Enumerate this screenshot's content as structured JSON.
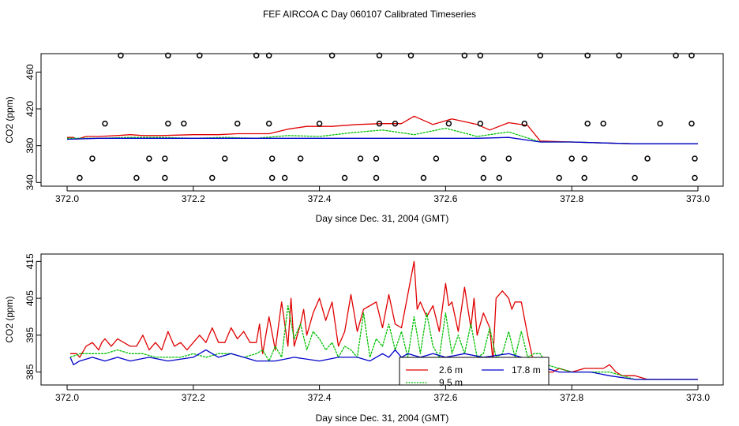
{
  "page_title": "FEF AIRCOA C  Day 060107  Calibrated Timeseries",
  "colors": {
    "red": "#e00000",
    "green": "#00c000",
    "blue": "#0000cc",
    "black": "#000000"
  },
  "chart_data": [
    {
      "type": "scatter+line",
      "title": "FEF AIRCOA C  Day 060107  Calibrated Timeseries",
      "xlabel": "Day since Dec. 31, 2004 (GMT)",
      "ylabel": "CO2 (ppm)",
      "xlim": [
        372.0,
        373.0
      ],
      "ylim": [
        336,
        480
      ],
      "xticks": [
        372.0,
        372.2,
        372.4,
        372.6,
        372.8,
        373.0
      ],
      "xtick_labels": [
        "372.0",
        "372.2",
        "372.4",
        "372.6",
        "372.8",
        "373.0"
      ],
      "yticks": [
        340,
        380,
        420,
        460
      ],
      "ytick_labels": [
        "340",
        "380",
        "420",
        "460"
      ],
      "calibration_points": [
        {
          "x": 372.02,
          "y": 345
        },
        {
          "x": 372.04,
          "y": 366
        },
        {
          "x": 372.06,
          "y": 404
        },
        {
          "x": 372.085,
          "y": 478
        },
        {
          "x": 372.11,
          "y": 345
        },
        {
          "x": 372.13,
          "y": 366
        },
        {
          "x": 372.155,
          "y": 345
        },
        {
          "x": 372.155,
          "y": 366
        },
        {
          "x": 372.16,
          "y": 404
        },
        {
          "x": 372.16,
          "y": 478
        },
        {
          "x": 372.185,
          "y": 404
        },
        {
          "x": 372.21,
          "y": 478
        },
        {
          "x": 372.23,
          "y": 345
        },
        {
          "x": 372.25,
          "y": 366
        },
        {
          "x": 372.27,
          "y": 404
        },
        {
          "x": 372.3,
          "y": 478
        },
        {
          "x": 372.32,
          "y": 478
        },
        {
          "x": 372.32,
          "y": 404
        },
        {
          "x": 372.325,
          "y": 366
        },
        {
          "x": 372.325,
          "y": 345
        },
        {
          "x": 372.345,
          "y": 345
        },
        {
          "x": 372.37,
          "y": 366
        },
        {
          "x": 372.4,
          "y": 404
        },
        {
          "x": 372.42,
          "y": 478
        },
        {
          "x": 372.44,
          "y": 345
        },
        {
          "x": 372.465,
          "y": 366
        },
        {
          "x": 372.49,
          "y": 366
        },
        {
          "x": 372.49,
          "y": 345
        },
        {
          "x": 372.495,
          "y": 404
        },
        {
          "x": 372.495,
          "y": 478
        },
        {
          "x": 372.52,
          "y": 404
        },
        {
          "x": 372.545,
          "y": 478
        },
        {
          "x": 372.565,
          "y": 345
        },
        {
          "x": 372.585,
          "y": 366
        },
        {
          "x": 372.605,
          "y": 404
        },
        {
          "x": 372.63,
          "y": 478
        },
        {
          "x": 372.655,
          "y": 404
        },
        {
          "x": 372.655,
          "y": 478
        },
        {
          "x": 372.66,
          "y": 366
        },
        {
          "x": 372.66,
          "y": 345
        },
        {
          "x": 372.685,
          "y": 345
        },
        {
          "x": 372.7,
          "y": 366
        },
        {
          "x": 372.725,
          "y": 404
        },
        {
          "x": 372.75,
          "y": 478
        },
        {
          "x": 372.78,
          "y": 345
        },
        {
          "x": 372.8,
          "y": 366
        },
        {
          "x": 372.82,
          "y": 366
        },
        {
          "x": 372.82,
          "y": 345
        },
        {
          "x": 372.825,
          "y": 404
        },
        {
          "x": 372.825,
          "y": 478
        },
        {
          "x": 372.85,
          "y": 404
        },
        {
          "x": 372.875,
          "y": 478
        },
        {
          "x": 372.9,
          "y": 345
        },
        {
          "x": 372.92,
          "y": 366
        },
        {
          "x": 372.94,
          "y": 404
        },
        {
          "x": 372.965,
          "y": 478
        },
        {
          "x": 372.99,
          "y": 478
        },
        {
          "x": 372.99,
          "y": 404
        },
        {
          "x": 372.995,
          "y": 366
        },
        {
          "x": 372.995,
          "y": 345
        }
      ],
      "series": [
        {
          "name": "2.6 m",
          "color": "#e00000",
          "x": [
            372.0,
            372.01,
            372.015,
            372.03,
            372.05,
            372.08,
            372.1,
            372.12,
            372.15,
            372.2,
            372.24,
            372.27,
            372.3,
            372.32,
            372.35,
            372.38,
            372.42,
            372.46,
            372.5,
            372.53,
            372.55,
            372.58,
            372.61,
            372.65,
            372.67,
            372.7,
            372.73,
            372.75,
            372.8,
            372.85,
            372.9,
            372.95,
            373.0
          ],
          "y": [
            389,
            389,
            387,
            390,
            390,
            391,
            392,
            391,
            391,
            392,
            392,
            393,
            393,
            393,
            398,
            401,
            401,
            403,
            404,
            404,
            412,
            403,
            409,
            403,
            397,
            405,
            402,
            385,
            384,
            383,
            382,
            382,
            382
          ]
        },
        {
          "name": "9.5 m",
          "color": "#00c000",
          "x": [
            372.0,
            372.05,
            372.1,
            372.15,
            372.2,
            372.25,
            372.3,
            372.35,
            372.4,
            372.45,
            372.5,
            372.55,
            372.6,
            372.65,
            372.7,
            372.75,
            372.8,
            372.85,
            372.9,
            373.0
          ],
          "y": [
            388,
            388,
            389,
            389,
            388,
            389,
            388,
            391,
            390,
            394,
            397,
            392,
            399,
            390,
            395,
            384,
            384,
            383,
            382,
            382
          ]
        },
        {
          "name": "17.8 m",
          "color": "#0000cc",
          "x": [
            372.0,
            372.05,
            372.1,
            372.15,
            372.2,
            372.25,
            372.3,
            372.35,
            372.4,
            372.45,
            372.5,
            372.55,
            372.6,
            372.65,
            372.7,
            372.75,
            372.8,
            372.85,
            372.9,
            373.0
          ],
          "y": [
            387,
            388,
            388,
            388,
            388,
            388,
            388,
            388,
            388,
            388,
            388,
            388,
            388,
            388,
            389,
            384,
            384,
            383,
            382,
            382
          ]
        }
      ]
    },
    {
      "type": "line",
      "xlabel": "Day since Dec. 31, 2004 (GMT)",
      "ylabel": "CO2 (ppm)",
      "xlim": [
        372.0,
        373.0
      ],
      "ylim": [
        381.5,
        417
      ],
      "xticks": [
        372.0,
        372.2,
        372.4,
        372.6,
        372.8,
        373.0
      ],
      "xtick_labels": [
        "372.0",
        "372.2",
        "372.4",
        "372.6",
        "372.8",
        "373.0"
      ],
      "yticks": [
        385,
        395,
        405,
        415
      ],
      "ytick_labels": [
        "385",
        "395",
        "405",
        "415"
      ],
      "legend": {
        "position": "bottom-center",
        "entries": [
          "2.6 m",
          "17.8 m",
          "9.5 m"
        ]
      },
      "series": [
        {
          "name": "2.6 m",
          "color": "#e00000",
          "x": [
            372.005,
            372.015,
            372.02,
            372.03,
            372.04,
            372.05,
            372.055,
            372.06,
            372.07,
            372.08,
            372.09,
            372.1,
            372.11,
            372.12,
            372.13,
            372.14,
            372.15,
            372.16,
            372.17,
            372.18,
            372.19,
            372.2,
            372.21,
            372.22,
            372.23,
            372.24,
            372.25,
            372.26,
            372.27,
            372.28,
            372.29,
            372.3,
            372.305,
            372.31,
            372.32,
            372.33,
            372.34,
            372.35,
            372.355,
            372.36,
            372.37,
            372.375,
            372.38,
            372.39,
            372.4,
            372.41,
            372.42,
            372.43,
            372.44,
            372.45,
            372.46,
            372.47,
            372.48,
            372.49,
            372.5,
            372.51,
            372.52,
            372.53,
            372.54,
            372.55,
            372.555,
            372.56,
            372.57,
            372.58,
            372.59,
            372.6,
            372.605,
            372.61,
            372.62,
            372.63,
            372.64,
            372.645,
            372.65,
            372.66,
            372.67,
            372.675,
            372.68,
            372.69,
            372.7,
            372.705,
            372.71,
            372.72,
            372.73,
            372.74,
            372.75,
            372.76,
            372.77,
            372.78,
            372.8,
            372.82,
            372.84,
            372.85,
            372.86,
            372.87,
            372.88,
            372.9,
            372.92,
            372.94,
            372.96,
            372.98,
            373.0
          ],
          "y": [
            390,
            390,
            389,
            392,
            393,
            391,
            393,
            394,
            392,
            394,
            393,
            392,
            392,
            395,
            391,
            393,
            391,
            396,
            392,
            393,
            391,
            393,
            395,
            393,
            397,
            393,
            393,
            397,
            394,
            396,
            393,
            393,
            398,
            390,
            400,
            391,
            404,
            392,
            405,
            392,
            398,
            402,
            395,
            401,
            405,
            399,
            404,
            392,
            396,
            406,
            396,
            402,
            403,
            404,
            397,
            406,
            398,
            397,
            406,
            415,
            402,
            404,
            400,
            403,
            396,
            409,
            403,
            404,
            396,
            408,
            397,
            405,
            395,
            401,
            397,
            388,
            405,
            407,
            405,
            402,
            404,
            404,
            395,
            387,
            386,
            385,
            385,
            386,
            385,
            386,
            386,
            386,
            387,
            385,
            384,
            384,
            383,
            383,
            383,
            383,
            383
          ]
        },
        {
          "name": "9.5 m",
          "color": "#00c000",
          "x": [
            372.005,
            372.02,
            372.04,
            372.06,
            372.08,
            372.1,
            372.12,
            372.14,
            372.16,
            372.18,
            372.2,
            372.22,
            372.24,
            372.26,
            372.28,
            372.3,
            372.31,
            372.32,
            372.33,
            372.34,
            372.35,
            372.36,
            372.37,
            372.38,
            372.39,
            372.4,
            372.41,
            372.42,
            372.43,
            372.44,
            372.45,
            372.46,
            372.47,
            372.48,
            372.49,
            372.5,
            372.51,
            372.52,
            372.53,
            372.54,
            372.55,
            372.56,
            372.57,
            372.58,
            372.59,
            372.6,
            372.61,
            372.62,
            372.63,
            372.64,
            372.65,
            372.66,
            372.67,
            372.68,
            372.69,
            372.7,
            372.71,
            372.72,
            372.73,
            372.74,
            372.75,
            372.76,
            372.78,
            372.8,
            372.83,
            372.86,
            372.88,
            372.9,
            372.93,
            372.96,
            373.0
          ],
          "y": [
            389,
            390,
            390,
            390,
            391,
            390,
            390,
            389,
            389,
            389,
            390,
            389,
            390,
            390,
            389,
            390,
            391,
            388,
            392,
            389,
            403,
            394,
            398,
            391,
            396,
            394,
            391,
            393,
            389,
            392,
            391,
            389,
            401,
            389,
            394,
            392,
            398,
            391,
            396,
            389,
            400,
            390,
            401,
            392,
            389,
            401,
            390,
            395,
            390,
            398,
            389,
            390,
            397,
            389,
            390,
            396,
            389,
            396,
            389,
            390,
            390,
            387,
            386,
            385,
            385,
            385,
            384,
            383,
            383,
            383,
            383
          ]
        },
        {
          "name": "17.8 m",
          "color": "#0000cc",
          "x": [
            372.005,
            372.01,
            372.02,
            372.04,
            372.06,
            372.08,
            372.1,
            372.13,
            372.16,
            372.2,
            372.22,
            372.24,
            372.26,
            372.28,
            372.3,
            372.33,
            372.36,
            372.4,
            372.43,
            372.46,
            372.48,
            372.5,
            372.51,
            372.52,
            372.53,
            372.54,
            372.56,
            372.58,
            372.6,
            372.63,
            372.66,
            372.7,
            372.72,
            372.74,
            372.76,
            372.78,
            372.8,
            372.83,
            372.86,
            372.9,
            372.94,
            372.97,
            373.0
          ],
          "y": [
            389,
            387,
            388,
            389,
            388,
            389,
            388,
            389,
            388,
            389,
            391,
            389,
            390,
            389,
            388,
            388,
            389,
            388,
            389,
            389,
            388,
            390,
            389,
            391,
            389,
            390,
            389,
            390,
            389,
            390,
            389,
            390,
            389,
            388,
            386,
            385,
            385,
            385,
            384,
            383,
            383,
            383,
            383
          ]
        }
      ]
    }
  ]
}
